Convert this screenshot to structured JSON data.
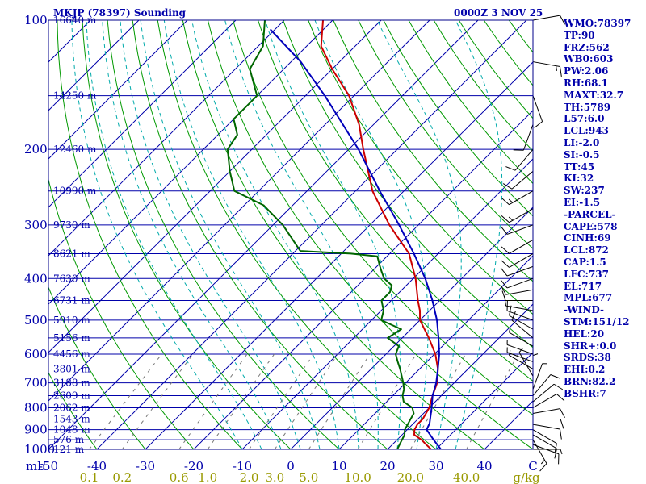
{
  "header": {
    "station": "MKJP (78397) Sounding",
    "valid": "0000Z  3 NOV 25"
  },
  "indices": [
    "WMO:78397",
    "TP:90",
    "FRZ:562",
    "WB0:603",
    "PW:2.06",
    "RH:68.1",
    "MAXT:32.7",
    "TH:5789",
    "L57:6.0",
    "LCL:943",
    "LI:-2.0",
    "SI:-0.5",
    "TT:45",
    "KI:32",
    "SW:237",
    "EI:-1.5",
    "-PARCEL-",
    "CAPE:578",
    "CINH:69",
    "LCL:872",
    "CAP:1.5",
    "LFC:737",
    "EL:717",
    "MPL:677",
    "-WIND-",
    "STM:151/12",
    "HEL:20",
    "SHR+:0.0",
    "SRDS:38",
    "EHI:0.2",
    "BRN:82.2",
    "BSHR:7"
  ],
  "chart_data": {
    "type": "skew-t",
    "pressure_axis": {
      "label_units": "mb",
      "ticks": [
        100,
        200,
        300,
        400,
        500,
        600,
        700,
        800,
        900,
        1000
      ],
      "ylim": [
        100,
        1000
      ],
      "scale": "log"
    },
    "temperature_axis": {
      "ticks": [
        "-50",
        "-40",
        "-30",
        "-20",
        "-10",
        "0",
        "10",
        "20",
        "30",
        "40",
        "C"
      ],
      "xlim": [
        -50,
        50
      ]
    },
    "mixing_ratio_axis": {
      "units": "g/kg",
      "ticks": [
        "0.1",
        "0.2",
        "0.6",
        "1.0",
        "2.0",
        "3.0",
        "5.0",
        "10.0",
        "20.0",
        "40.0"
      ]
    },
    "heights": [
      {
        "p": 100,
        "label": "16640 m"
      },
      {
        "p": 150,
        "label": "14250 m"
      },
      {
        "p": 200,
        "label": "12460 m"
      },
      {
        "p": 250,
        "label": "10990 m"
      },
      {
        "p": 300,
        "label": "9730 m"
      },
      {
        "p": 350,
        "label": "8621 m"
      },
      {
        "p": 400,
        "label": "7630 m"
      },
      {
        "p": 450,
        "label": "6731 m"
      },
      {
        "p": 500,
        "label": "5910 m"
      },
      {
        "p": 550,
        "label": "5156 m"
      },
      {
        "p": 600,
        "label": "4456 m"
      },
      {
        "p": 650,
        "label": "3801 m"
      },
      {
        "p": 700,
        "label": "3188 m"
      },
      {
        "p": 750,
        "label": "2609 m"
      },
      {
        "p": 800,
        "label": "2062 m"
      },
      {
        "p": 850,
        "label": "1543 m"
      },
      {
        "p": 900,
        "label": "1048 m"
      },
      {
        "p": 950,
        "label": "576 m"
      },
      {
        "p": 1000,
        "label": "121 m"
      }
    ],
    "temperature": [
      [
        1013,
        30.5
      ],
      [
        1000,
        29
      ],
      [
        975,
        27
      ],
      [
        950,
        25
      ],
      [
        925,
        22.5
      ],
      [
        900,
        21.5
      ],
      [
        875,
        21
      ],
      [
        850,
        21
      ],
      [
        800,
        20
      ],
      [
        750,
        18.2
      ],
      [
        700,
        16.5
      ],
      [
        650,
        13.8
      ],
      [
        600,
        10.2
      ],
      [
        550,
        5.5
      ],
      [
        500,
        0
      ],
      [
        475,
        -2
      ],
      [
        450,
        -4.5
      ],
      [
        400,
        -9.5
      ],
      [
        350,
        -16
      ],
      [
        300,
        -26
      ],
      [
        250,
        -36.5
      ],
      [
        200,
        -47
      ],
      [
        175,
        -53
      ],
      [
        150,
        -61
      ],
      [
        130,
        -70
      ],
      [
        115,
        -77
      ],
      [
        100,
        -82
      ]
    ],
    "dewpoint": [
      [
        1013,
        23
      ],
      [
        1000,
        22
      ],
      [
        975,
        21.5
      ],
      [
        950,
        21
      ],
      [
        925,
        20.5
      ],
      [
        900,
        19.5
      ],
      [
        875,
        19
      ],
      [
        850,
        18.5
      ],
      [
        825,
        18
      ],
      [
        800,
        16.5
      ],
      [
        775,
        13.5
      ],
      [
        750,
        12
      ],
      [
        725,
        11
      ],
      [
        700,
        9.5
      ],
      [
        650,
        6
      ],
      [
        625,
        4
      ],
      [
        600,
        2
      ],
      [
        575,
        1
      ],
      [
        550,
        -3
      ],
      [
        525,
        -2
      ],
      [
        500,
        -8
      ],
      [
        475,
        -9.5
      ],
      [
        450,
        -12
      ],
      [
        430,
        -12
      ],
      [
        415,
        -13
      ],
      [
        400,
        -16
      ],
      [
        385,
        -18
      ],
      [
        370,
        -20
      ],
      [
        355,
        -22
      ],
      [
        350,
        -28
      ],
      [
        345,
        -39
      ],
      [
        300,
        -48
      ],
      [
        270,
        -56
      ],
      [
        250,
        -65
      ],
      [
        225,
        -70
      ],
      [
        200,
        -75
      ],
      [
        185,
        -76
      ],
      [
        170,
        -80
      ],
      [
        150,
        -80
      ],
      [
        130,
        -87
      ],
      [
        115,
        -89
      ],
      [
        100,
        -94
      ]
    ],
    "parcel": [
      [
        1000,
        31
      ],
      [
        950,
        27.5
      ],
      [
        900,
        24
      ],
      [
        870,
        23.3
      ],
      [
        800,
        20.5
      ],
      [
        750,
        18.2
      ],
      [
        700,
        16.3
      ],
      [
        650,
        13.8
      ],
      [
        600,
        11
      ],
      [
        550,
        7.5
      ],
      [
        500,
        3.5
      ],
      [
        450,
        -1.5
      ],
      [
        400,
        -7.5
      ],
      [
        350,
        -15
      ],
      [
        300,
        -24
      ],
      [
        250,
        -35
      ],
      [
        200,
        -48
      ],
      [
        150,
        -66
      ],
      [
        125,
        -78
      ],
      [
        105,
        -91
      ]
    ],
    "wind_barbs": [
      [
        1000,
        90,
        5
      ],
      [
        975,
        110,
        10
      ],
      [
        950,
        150,
        15
      ],
      [
        925,
        120,
        10
      ],
      [
        900,
        120,
        10
      ],
      [
        875,
        100,
        10
      ],
      [
        850,
        90,
        10
      ],
      [
        825,
        80,
        10
      ],
      [
        800,
        60,
        10
      ],
      [
        775,
        50,
        10
      ],
      [
        750,
        40,
        10
      ],
      [
        725,
        20,
        5
      ],
      [
        700,
        360,
        5
      ],
      [
        675,
        330,
        5
      ],
      [
        650,
        300,
        5
      ],
      [
        625,
        290,
        5
      ],
      [
        600,
        290,
        5
      ],
      [
        575,
        300,
        5
      ],
      [
        550,
        310,
        10
      ],
      [
        525,
        300,
        10
      ],
      [
        500,
        290,
        10
      ],
      [
        475,
        280,
        10
      ],
      [
        450,
        270,
        10
      ],
      [
        425,
        260,
        10
      ],
      [
        400,
        250,
        10
      ],
      [
        375,
        250,
        10
      ],
      [
        350,
        240,
        10
      ],
      [
        325,
        240,
        10
      ],
      [
        300,
        250,
        10
      ],
      [
        275,
        240,
        15
      ],
      [
        250,
        240,
        15
      ],
      [
        225,
        230,
        10
      ],
      [
        200,
        220,
        10
      ],
      [
        175,
        200,
        10
      ],
      [
        150,
        160,
        10
      ],
      [
        125,
        100,
        15
      ],
      [
        100,
        80,
        10
      ]
    ],
    "colors": {
      "frame": "#00008b",
      "isobar": "#0000aa",
      "isotherm": "#0000aa",
      "dry_adiabat": "#009900",
      "moist_adiabat": "#00aaaa",
      "mixing_ratio": "#777777",
      "temperature": "#cc0000",
      "dewpoint": "#006600",
      "parcel": "#0000bb",
      "mix_labels": "#999900"
    }
  }
}
